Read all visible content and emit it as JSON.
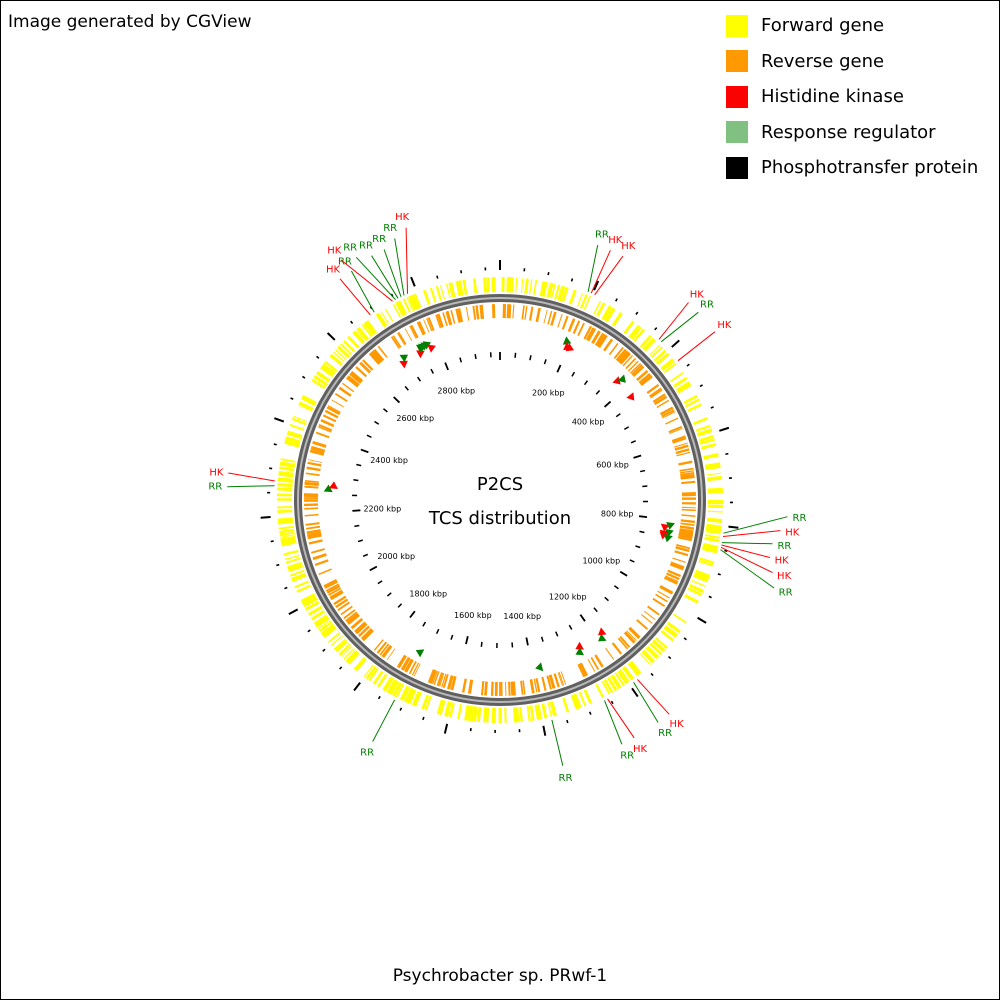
{
  "credit": "Image generated by CGView",
  "organism": "Psychrobacter sp. PRwf-1",
  "center": {
    "line1": "P2CS",
    "line2": "TCS distribution"
  },
  "legend": [
    {
      "label": "Forward gene",
      "color": "#ffff00"
    },
    {
      "label": "Reverse gene",
      "color": "#ff9900"
    },
    {
      "label": "Histidine kinase",
      "color": "#ff0000"
    },
    {
      "label": "Response regulator",
      "color": "#80c080"
    },
    {
      "label": "Phosphotransfer protein",
      "color": "#000000"
    }
  ],
  "colors": {
    "hk": "#ff0000",
    "rr": "#008000",
    "forward": "#ffff00",
    "reverse": "#ff9900",
    "backbone": "#808080"
  },
  "genome": {
    "length_kbp": 2980,
    "ruler": [
      {
        "kbp": 200,
        "label": "200 kbp"
      },
      {
        "kbp": 400,
        "label": "400 kbp"
      },
      {
        "kbp": 600,
        "label": "600 kbp"
      },
      {
        "kbp": 800,
        "label": "800 kbp"
      },
      {
        "kbp": 1000,
        "label": "1000 kbp"
      },
      {
        "kbp": 1200,
        "label": "1200 kbp"
      },
      {
        "kbp": 1400,
        "label": "1400 kbp"
      },
      {
        "kbp": 1600,
        "label": "1600 kbp"
      },
      {
        "kbp": 1800,
        "label": "1800 kbp"
      },
      {
        "kbp": 2000,
        "label": "2000 kbp"
      },
      {
        "kbp": 2200,
        "label": "2200 kbp"
      },
      {
        "kbp": 2400,
        "label": "2400 kbp"
      },
      {
        "kbp": 2600,
        "label": "2600 kbp"
      },
      {
        "kbp": 2800,
        "label": "2800 kbp"
      }
    ]
  },
  "features": [
    {
      "label": "RR",
      "type": "rr",
      "kbp": 190
    },
    {
      "label": "HK",
      "type": "hk",
      "kbp": 197
    },
    {
      "label": "HK",
      "type": "hk",
      "kbp": 205
    },
    {
      "label": "HK",
      "type": "hk",
      "kbp": 370
    },
    {
      "label": "RR",
      "type": "rr",
      "kbp": 377
    },
    {
      "label": "HK",
      "type": "hk",
      "kbp": 430
    },
    {
      "label": "RR",
      "type": "rr",
      "kbp": 815
    },
    {
      "label": "HK",
      "type": "hk",
      "kbp": 822
    },
    {
      "label": "RR",
      "type": "rr",
      "kbp": 835
    },
    {
      "label": "HK",
      "type": "hk",
      "kbp": 840
    },
    {
      "label": "HK",
      "type": "hk",
      "kbp": 845
    },
    {
      "label": "RR",
      "type": "rr",
      "kbp": 850
    },
    {
      "label": "HK",
      "type": "hk",
      "kbp": 1180
    },
    {
      "label": "RR",
      "type": "rr",
      "kbp": 1190
    },
    {
      "label": "HK",
      "type": "hk",
      "kbp": 1255
    },
    {
      "label": "RR",
      "type": "rr",
      "kbp": 1262
    },
    {
      "label": "RR",
      "type": "rr",
      "kbp": 1380
    },
    {
      "label": "RR",
      "type": "rr",
      "kbp": 1720
    },
    {
      "label": "RR",
      "type": "rr",
      "kbp": 2265
    },
    {
      "label": "HK",
      "type": "hk",
      "kbp": 2275
    },
    {
      "label": "HK",
      "type": "hk",
      "kbp": 2690
    },
    {
      "label": "RR",
      "type": "rr",
      "kbp": 2700
    },
    {
      "label": "HK",
      "type": "hk",
      "kbp": 2745
    },
    {
      "label": "RR",
      "type": "rr",
      "kbp": 2752
    },
    {
      "label": "RR",
      "type": "rr",
      "kbp": 2758
    },
    {
      "label": "RR",
      "type": "rr",
      "kbp": 2765
    },
    {
      "label": "RR",
      "type": "rr",
      "kbp": 2772
    },
    {
      "label": "HK",
      "type": "hk",
      "kbp": 2780
    }
  ]
}
